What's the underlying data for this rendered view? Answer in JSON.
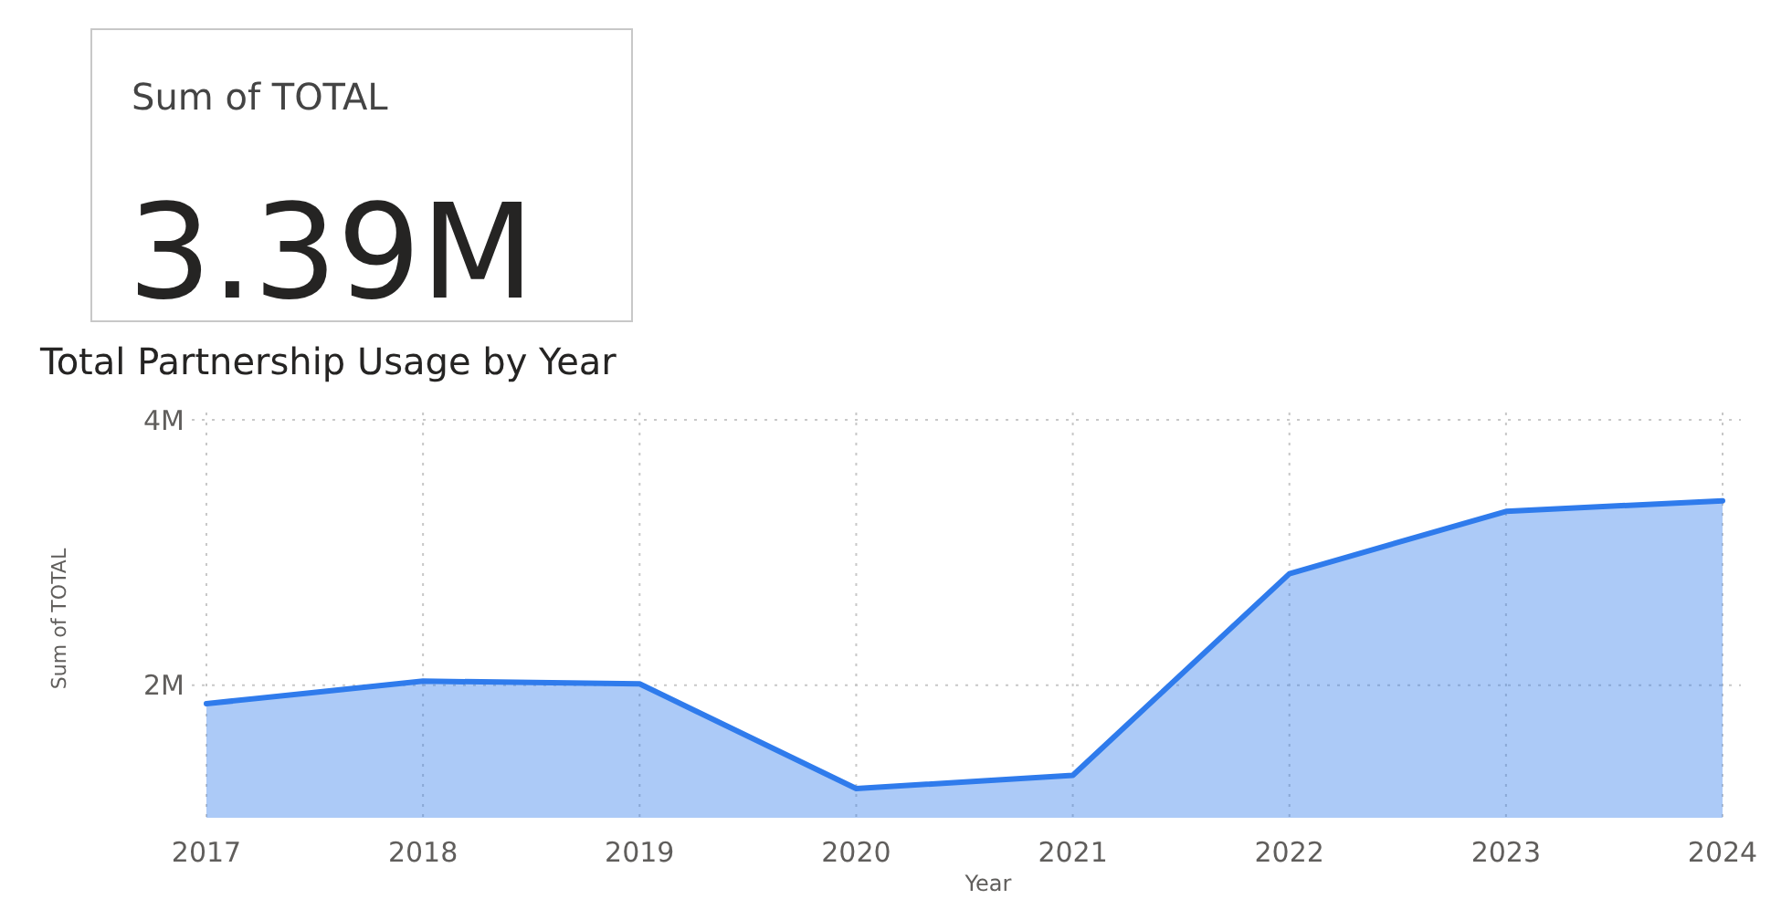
{
  "chart_data": [
    {
      "type": "other",
      "title": "Sum of TOTAL",
      "annotations": [
        "3.39M"
      ]
    },
    {
      "type": "area",
      "title": "Total Partnership Usage by Year",
      "xlabel": "Year",
      "ylabel": "Sum of TOTAL",
      "categories": [
        "2017",
        "2018",
        "2019",
        "2020",
        "2021",
        "2022",
        "2023",
        "2024"
      ],
      "series": [
        {
          "color": "#2f7bec",
          "values": [
            1860000,
            2030000,
            2010000,
            1220000,
            1320000,
            2840000,
            3310000,
            3390000
          ]
        }
      ],
      "ylim": [
        1000000,
        4000000
      ],
      "yticks": [
        {
          "value": 2000000,
          "label": "2M"
        },
        {
          "value": 4000000,
          "label": "4M"
        }
      ],
      "grid": true
    }
  ]
}
